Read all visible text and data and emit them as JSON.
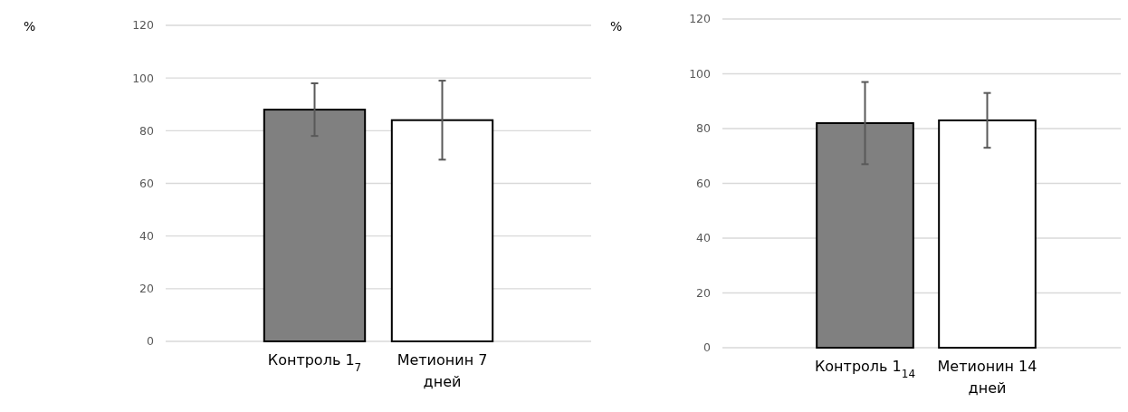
{
  "chart_data": [
    {
      "type": "bar",
      "ylabel": "%",
      "categories": [
        "Контроль 1$_{7}$",
        "Метионин 7 дней"
      ],
      "values": [
        88,
        84
      ],
      "colors": [
        "#808080",
        "#ffffff"
      ],
      "errors": [
        [
          78,
          98
        ],
        [
          69,
          99
        ]
      ],
      "ylim": [
        0,
        120
      ],
      "yticks": [
        0,
        20,
        40,
        60,
        80,
        100,
        120
      ],
      "grid": "y"
    },
    {
      "type": "bar",
      "ylabel": "%",
      "categories": [
        "Контроль 1$_{14}$",
        "Метионин 14 дней"
      ],
      "values": [
        82,
        83
      ],
      "colors": [
        "#808080",
        "#ffffff"
      ],
      "errors": [
        [
          67,
          97
        ],
        [
          73,
          93
        ]
      ],
      "ylim": [
        0,
        120
      ],
      "yticks": [
        0,
        20,
        40,
        60,
        80,
        100,
        120
      ],
      "grid": "y"
    }
  ]
}
